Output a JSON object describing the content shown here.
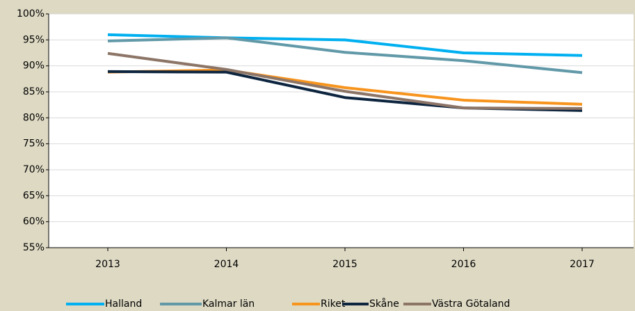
{
  "chart_data": {
    "type": "line",
    "categories": [
      "2013",
      "2014",
      "2015",
      "2016",
      "2017"
    ],
    "series": [
      {
        "name": "Halland",
        "color": "#00b0f0",
        "values": [
          96.0,
          95.4,
          95.0,
          92.5,
          92.0
        ]
      },
      {
        "name": "Kalmar län",
        "color": "#6199a8",
        "values": [
          94.8,
          95.4,
          92.6,
          91.0,
          88.7
        ]
      },
      {
        "name": "Riket",
        "color": "#f7941d",
        "values": [
          88.8,
          89.2,
          85.8,
          83.4,
          82.6
        ]
      },
      {
        "name": "Skåne",
        "color": "#0d253f",
        "values": [
          88.9,
          88.8,
          83.9,
          81.9,
          81.4
        ]
      },
      {
        "name": "Västra Götaland",
        "color": "#8c7567",
        "values": [
          92.4,
          89.3,
          85.1,
          81.9,
          81.8
        ]
      }
    ],
    "ylim": [
      55,
      100
    ],
    "yticks": [
      {
        "value": 55,
        "label": "55%"
      },
      {
        "value": 60,
        "label": "60%"
      },
      {
        "value": 65,
        "label": "65%"
      },
      {
        "value": 70,
        "label": "70%"
      },
      {
        "value": 75,
        "label": "75%"
      },
      {
        "value": 80,
        "label": "80%"
      },
      {
        "value": 85,
        "label": "85%"
      },
      {
        "value": 90,
        "label": "90%"
      },
      {
        "value": 95,
        "label": "95%"
      },
      {
        "value": 100,
        "label": "100%"
      }
    ],
    "grid": true,
    "legend": "bottom"
  }
}
